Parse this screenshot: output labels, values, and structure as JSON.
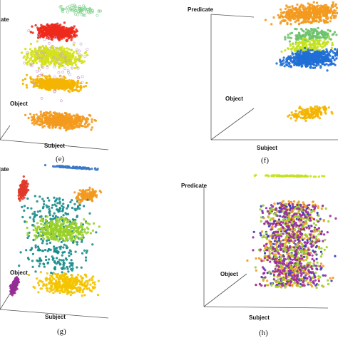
{
  "figure": {
    "panels": [
      {
        "id": "e",
        "caption": "(e)",
        "axes": {
          "z": "ate",
          "y": "Object",
          "x": "Subject"
        }
      },
      {
        "id": "f",
        "caption": "(f)",
        "axes": {
          "z": "Predicate",
          "y": "Object",
          "x": "Subject"
        }
      },
      {
        "id": "g",
        "caption": "(g)",
        "axes": {
          "z": "ate",
          "y": "Object",
          "x": "Subject"
        }
      },
      {
        "id": "h",
        "caption": "(h)",
        "axes": {
          "z": "Predicate",
          "y": "Object",
          "x": "Subject"
        }
      }
    ]
  },
  "chart_data": [
    {
      "type": "scatter",
      "panel": "e",
      "projection": "3d",
      "axes": [
        "Subject",
        "Object",
        "Predicate"
      ],
      "grid": false,
      "legend": "none",
      "note": "",
      "clusters": [
        {
          "color": "#7ccf8a",
          "subject": [
            0.42,
            0.98
          ],
          "object": [
            0.3,
            0.7
          ],
          "predicate": [
            0.92,
            1.0
          ],
          "density": "sparse"
        },
        {
          "color": "#ee2a1c",
          "subject": [
            0.18,
            0.72
          ],
          "object": [
            0.25,
            0.75
          ],
          "predicate": [
            0.72,
            0.84
          ],
          "density": "dense"
        },
        {
          "color": "#d4e21a",
          "subject": [
            0.05,
            0.82
          ],
          "object": [
            0.2,
            0.8
          ],
          "predicate": [
            0.5,
            0.68
          ],
          "density": "dense"
        },
        {
          "color": "#f4b400",
          "subject": [
            0.1,
            0.8
          ],
          "object": [
            0.3,
            0.7
          ],
          "predicate": [
            0.32,
            0.44
          ],
          "density": "dense"
        },
        {
          "color": "#f39a1e",
          "subject": [
            0.12,
            0.88
          ],
          "object": [
            0.2,
            0.8
          ],
          "predicate": [
            0.04,
            0.16
          ],
          "density": "dense"
        },
        {
          "color": "#c9a0d6",
          "subject": [
            0.0,
            0.95
          ],
          "object": [
            0.1,
            0.9
          ],
          "predicate": [
            0.2,
            0.9
          ],
          "density": "sparse"
        }
      ]
    },
    {
      "type": "scatter",
      "panel": "f",
      "projection": "3d",
      "axes": [
        "Subject",
        "Object",
        "Predicate"
      ],
      "grid": false,
      "legend": "none",
      "clusters": [
        {
          "color": "#f39a1e",
          "subject": [
            0.3,
            1.0
          ],
          "object": [
            0.3,
            0.7
          ],
          "predicate": [
            0.82,
            0.98
          ],
          "density": "dense"
        },
        {
          "color": "#6cc36b",
          "subject": [
            0.35,
            0.95
          ],
          "object": [
            0.3,
            0.7
          ],
          "predicate": [
            0.68,
            0.76
          ],
          "density": "medium"
        },
        {
          "color": "#c5e21e",
          "subject": [
            0.4,
            0.9
          ],
          "object": [
            0.3,
            0.7
          ],
          "predicate": [
            0.6,
            0.67
          ],
          "density": "medium"
        },
        {
          "color": "#1f6fd6",
          "subject": [
            0.35,
            0.95
          ],
          "object": [
            0.3,
            0.7
          ],
          "predicate": [
            0.46,
            0.6
          ],
          "density": "dense"
        },
        {
          "color": "#f4b400",
          "subject": [
            0.45,
            0.85
          ],
          "object": [
            0.3,
            0.7
          ],
          "predicate": [
            0.04,
            0.12
          ],
          "density": "medium"
        }
      ]
    },
    {
      "type": "scatter",
      "panel": "g",
      "projection": "3d",
      "axes": [
        "Subject",
        "Object",
        "Predicate"
      ],
      "grid": false,
      "legend": "none",
      "clusters": [
        {
          "color": "#3a78c8",
          "subject": [
            0.3,
            1.0
          ],
          "object": [
            0.5,
            0.5
          ],
          "predicate": [
            0.95,
            0.97
          ],
          "density": "line"
        },
        {
          "color": "#e03a2a",
          "subject": [
            0.08,
            0.16
          ],
          "object": [
            0.3,
            0.7
          ],
          "predicate": [
            0.7,
            0.85
          ],
          "density": "medium"
        },
        {
          "color": "#f39a1e",
          "subject": [
            0.6,
            0.9
          ],
          "object": [
            0.3,
            0.7
          ],
          "predicate": [
            0.72,
            0.8
          ],
          "density": "medium"
        },
        {
          "color": "#1a8c8c",
          "subject": [
            0.0,
            0.9
          ],
          "object": [
            0.2,
            0.8
          ],
          "predicate": [
            0.2,
            0.75
          ],
          "density": "lines"
        },
        {
          "color": "#9ad12a",
          "subject": [
            0.1,
            0.9
          ],
          "object": [
            0.2,
            0.8
          ],
          "predicate": [
            0.45,
            0.55
          ],
          "density": "lines"
        },
        {
          "color": "#f4c400",
          "subject": [
            0.15,
            0.95
          ],
          "object": [
            0.3,
            0.7
          ],
          "predicate": [
            0.05,
            0.15
          ],
          "density": "lines"
        },
        {
          "color": "#9a2a9a",
          "subject": [
            0.0,
            0.06
          ],
          "object": [
            0.3,
            0.7
          ],
          "predicate": [
            0.0,
            0.12
          ],
          "density": "medium"
        }
      ]
    },
    {
      "type": "scatter",
      "panel": "h",
      "projection": "3d",
      "axes": [
        "Subject",
        "Object",
        "Predicate"
      ],
      "grid": false,
      "legend": "none",
      "clusters": [
        {
          "color": "#c5e21e",
          "subject": [
            0.2,
            0.95
          ],
          "object": [
            0.5,
            0.5
          ],
          "predicate": [
            0.98,
            1.0
          ],
          "density": "line"
        },
        {
          "color": "#3a3ab0",
          "subject": [
            0.2,
            0.95
          ],
          "object": [
            0.3,
            0.7
          ],
          "predicate": [
            0.05,
            0.8
          ],
          "density": "lines"
        },
        {
          "color": "#f39a1e",
          "subject": [
            0.2,
            0.95
          ],
          "object": [
            0.3,
            0.7
          ],
          "predicate": [
            0.05,
            0.8
          ],
          "density": "lines"
        },
        {
          "color": "#9ad12a",
          "subject": [
            0.2,
            0.95
          ],
          "object": [
            0.3,
            0.7
          ],
          "predicate": [
            0.05,
            0.8
          ],
          "density": "lines"
        },
        {
          "color": "#a02aa0",
          "subject": [
            0.2,
            0.95
          ],
          "object": [
            0.3,
            0.7
          ],
          "predicate": [
            0.05,
            0.8
          ],
          "density": "lines"
        }
      ]
    }
  ]
}
